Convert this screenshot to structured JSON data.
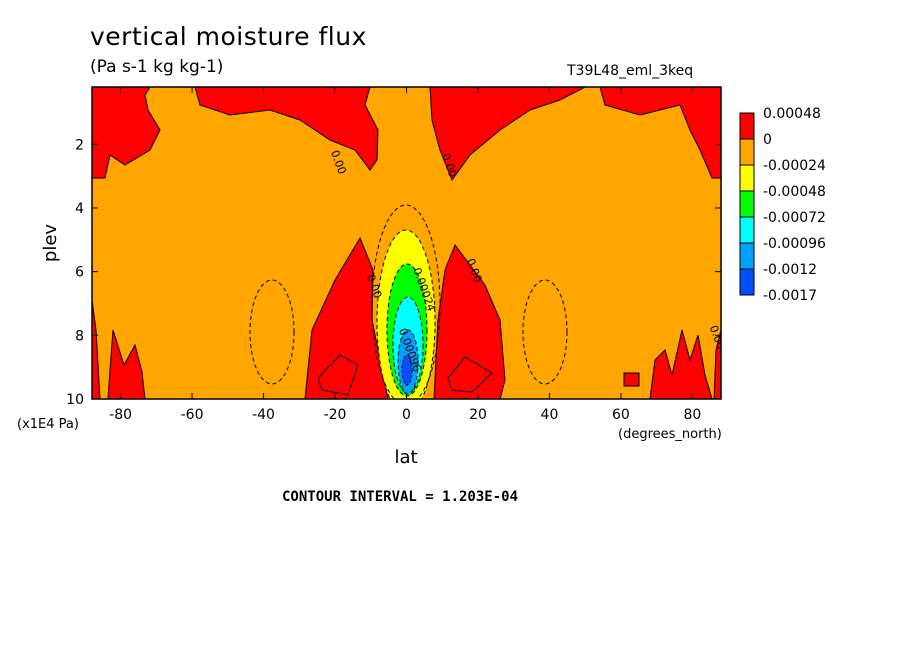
{
  "title": "vertical moisture flux",
  "units": "(Pa s-1 kg kg-1)",
  "dataset": "T39L48_eml_3keq",
  "contour_interval": "CONTOUR INTERVAL = 1.203E-04",
  "chart_data": {
    "type": "heatmap",
    "plot_kind": "latitude-pressure filled contour",
    "xlabel": "lat",
    "xunits": "(degrees_north)",
    "ylabel": "plev",
    "yunits": "(x1E4 Pa)",
    "xlim": [
      -88,
      88
    ],
    "ylim": [
      10,
      0.2
    ],
    "y_inverted": true,
    "xticks": [
      -80,
      -60,
      -40,
      -20,
      0,
      20,
      40,
      60,
      80
    ],
    "xtick_labels": [
      "-80",
      "-60",
      "-40",
      "-20",
      "0",
      "20",
      "40",
      "60",
      "80"
    ],
    "yticks": [
      2,
      4,
      6,
      8,
      10
    ],
    "ytick_labels": [
      "2",
      "4",
      "6",
      "8",
      "10"
    ],
    "contour_labels": [
      {
        "text": "0.00",
        "lat": -20,
        "plev": 2.6
      },
      {
        "text": "0.00",
        "lat": 11,
        "plev": 2.7
      },
      {
        "text": "0.00",
        "lat": -10,
        "plev": 6.5
      },
      {
        "text": "0.00",
        "lat": 18,
        "plev": 6.0
      },
      {
        "text": "0.00",
        "lat": 86,
        "plev": 8.1
      },
      {
        "text": "0.00024",
        "lat": 4,
        "plev": 6.6
      },
      {
        "text": "0.00096",
        "lat": 0,
        "plev": 8.5
      }
    ],
    "colorbar": {
      "levels": [
        "0.00048",
        "0",
        "-0.00024",
        "-0.00048",
        "-0.00072",
        "-0.00096",
        "-0.0012",
        "-0.0017"
      ],
      "colors": [
        "#ff0000",
        "#ffa500",
        "#ffff00",
        "#00ff00",
        "#00ffff",
        "#00a0ff",
        "#0050ff"
      ]
    },
    "colors": {
      "positive": "#ff0000",
      "background": "#ffa500",
      "level_yellow": "#ffff00",
      "level_green": "#00ff00",
      "level_cyan": "#00ffff",
      "level_lightblue": "#00a0ff",
      "level_blue": "#0050ff"
    }
  }
}
